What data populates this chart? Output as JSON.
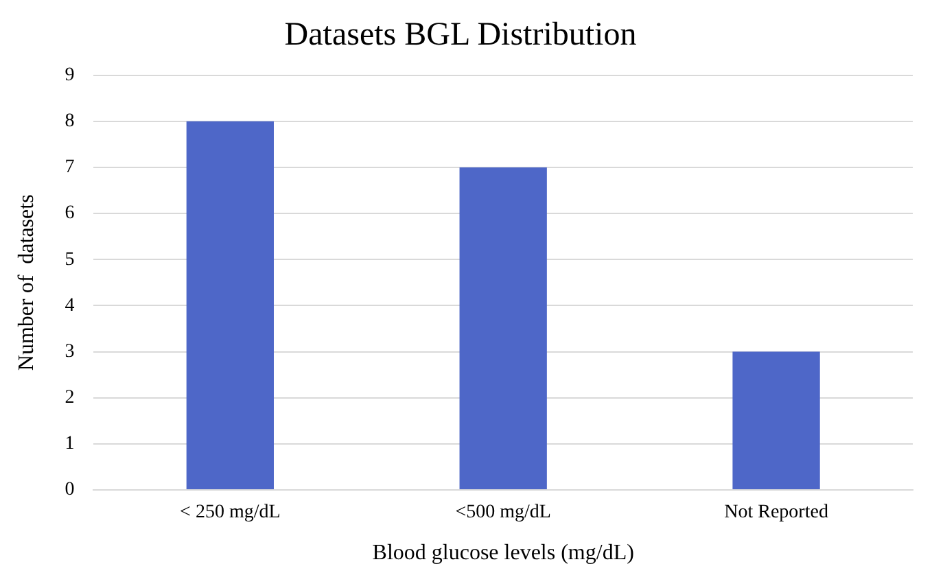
{
  "chart_data": {
    "type": "bar",
    "title": "Datasets BGL Distribution",
    "xlabel": "Blood glucose levels (mg/dL)",
    "ylabel": "Number of  datasets",
    "categories": [
      "< 250 mg/dL",
      "<500 mg/dL",
      "Not Reported"
    ],
    "values": [
      8,
      7,
      3
    ],
    "color": "#4e67c8",
    "ylim": [
      0,
      9
    ],
    "yticks": [
      0,
      1,
      2,
      3,
      4,
      5,
      6,
      7,
      8,
      9
    ],
    "grid": "y",
    "legend": false
  }
}
